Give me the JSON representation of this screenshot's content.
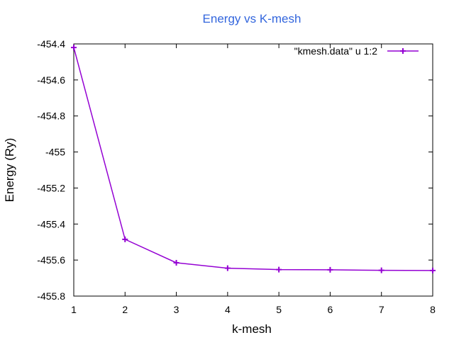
{
  "chart_data": {
    "type": "line",
    "title": "Energy vs K-mesh",
    "xlabel": "k-mesh",
    "ylabel": "Energy (Ry)",
    "xlim": [
      1,
      8
    ],
    "ylim": [
      -455.8,
      -454.4
    ],
    "x_ticks": [
      "1",
      "2",
      "3",
      "4",
      "5",
      "6",
      "7",
      "8"
    ],
    "y_ticks": [
      "-454.4",
      "-454.6",
      "-454.8",
      "-455",
      "-455.2",
      "-455.4",
      "-455.6",
      "-455.8"
    ],
    "grid": false,
    "legend_position": "top-right",
    "series": [
      {
        "name": "\"kmesh.data\" u 1:2",
        "color": "#9400D3",
        "marker": "plus",
        "x": [
          1,
          2,
          3,
          4,
          5,
          6,
          7,
          8
        ],
        "y": [
          -454.42,
          -455.485,
          -455.615,
          -455.645,
          -455.653,
          -455.654,
          -455.657,
          -455.658
        ]
      }
    ]
  },
  "colors": {
    "title": "#3366DD",
    "series": "#9400D3"
  }
}
